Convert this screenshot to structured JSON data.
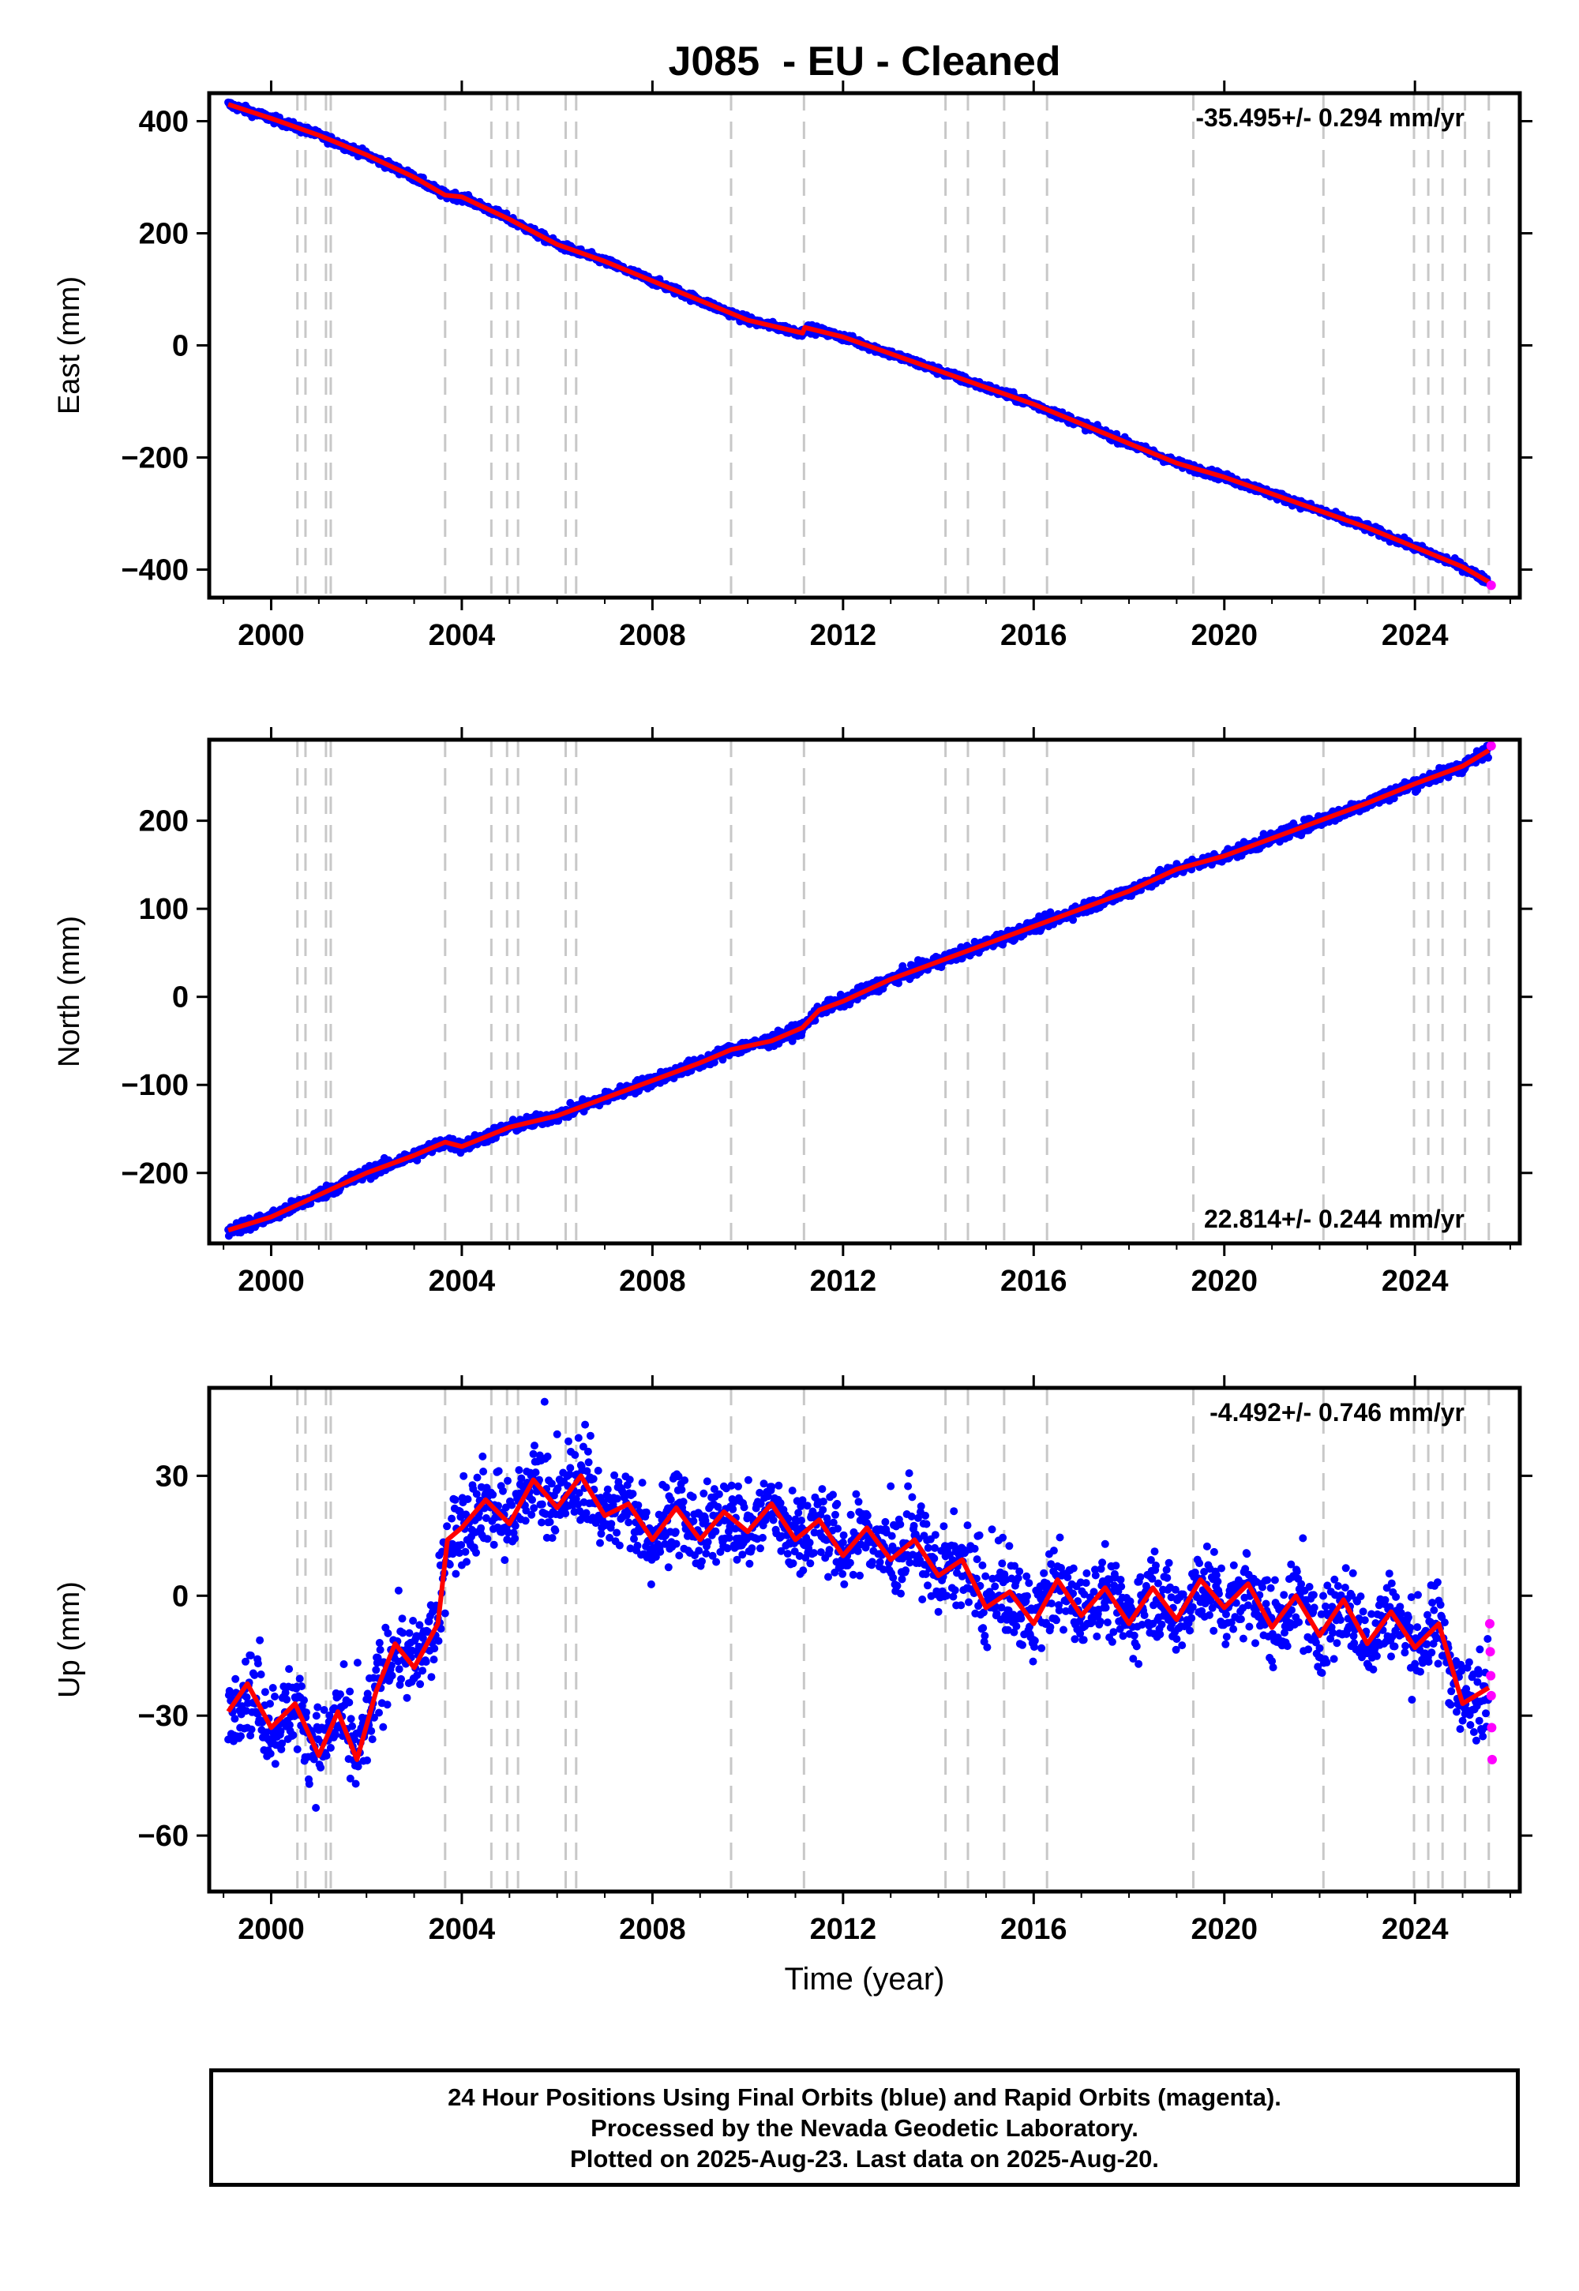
{
  "title": "J085  - EU - Cleaned",
  "colors": {
    "final": "#0000ff",
    "rapid": "#ff00ff",
    "model": "#ff0000",
    "breaks": "#c8c8c8",
    "axis": "#000000"
  },
  "xaxis": {
    "label": "Time (year)",
    "ticks": [
      2000,
      2004,
      2008,
      2012,
      2016,
      2020,
      2024
    ],
    "range": [
      1998.7,
      2026.2
    ]
  },
  "breaks": [
    2000.55,
    2000.72,
    2001.15,
    2001.25,
    2003.65,
    2004.62,
    2004.95,
    2005.18,
    2006.18,
    2006.4,
    2009.65,
    2011.18,
    2014.15,
    2014.62,
    2015.38,
    2016.28,
    2019.35,
    2022.08,
    2023.98,
    2024.28,
    2024.58,
    2025.05,
    2025.55
  ],
  "chart_data": [
    {
      "type": "scatter",
      "component": "East",
      "ylabel": "East (mm)",
      "rate_text": "-35.495+/- 0.294 mm/yr",
      "rate_position": "top-right",
      "ylim": [
        -450,
        450
      ],
      "yticks": [
        400,
        200,
        0,
        -200,
        -400
      ],
      "series": [
        {
          "name": "Final Orbits (blue)",
          "x": [
            1999.1,
            2000.0,
            2001.0,
            2002.0,
            2003.0,
            2003.65,
            2004.0,
            2005.0,
            2006.0,
            2007.0,
            2008.0,
            2009.0,
            2010.0,
            2011.15,
            2011.2,
            2012.0,
            2013.0,
            2014.0,
            2015.0,
            2016.0,
            2017.0,
            2018.0,
            2019.0,
            2019.6,
            2020.0,
            2021.0,
            2022.0,
            2023.0,
            2024.0,
            2025.0,
            2025.55
          ],
          "y": [
            430,
            405,
            375,
            340,
            300,
            268,
            265,
            225,
            180,
            150,
            115,
            80,
            45,
            22,
            32,
            15,
            -15,
            -45,
            -75,
            -105,
            -140,
            -175,
            -210,
            -225,
            -235,
            -265,
            -295,
            -325,
            -360,
            -395,
            -422
          ]
        },
        {
          "name": "Rapid Orbits (magenta)",
          "x": [
            2025.6
          ],
          "y": [
            -428
          ]
        }
      ]
    },
    {
      "type": "scatter",
      "component": "North",
      "ylabel": "North (mm)",
      "rate_text": "22.814+/- 0.244 mm/yr",
      "rate_position": "bottom-right",
      "ylim": [
        -280,
        292
      ],
      "yticks": [
        200,
        100,
        0,
        -100,
        -200
      ],
      "series": [
        {
          "name": "Final Orbits (blue)",
          "x": [
            1999.1,
            2000.0,
            2001.0,
            2002.0,
            2003.0,
            2003.65,
            2004.0,
            2005.0,
            2006.0,
            2007.0,
            2008.0,
            2009.0,
            2009.65,
            2010.5,
            2011.15,
            2011.5,
            2012.0,
            2013.0,
            2014.0,
            2015.0,
            2016.0,
            2017.0,
            2018.0,
            2019.0,
            2020.0,
            2021.0,
            2022.0,
            2023.0,
            2024.0,
            2025.0,
            2025.55
          ],
          "y": [
            -265,
            -250,
            -225,
            -200,
            -180,
            -165,
            -170,
            -148,
            -135,
            -115,
            -95,
            -75,
            -60,
            -50,
            -35,
            -15,
            -5,
            20,
            40,
            60,
            80,
            100,
            120,
            145,
            160,
            180,
            200,
            220,
            242,
            262,
            280
          ]
        },
        {
          "name": "Rapid Orbits (magenta)",
          "x": [
            2025.6
          ],
          "y": [
            285
          ]
        }
      ]
    },
    {
      "type": "scatter",
      "component": "Up",
      "ylabel": "Up (mm)",
      "rate_text": "-4.492+/- 0.746 mm/yr",
      "rate_position": "top-right",
      "ylim": [
        -74,
        52
      ],
      "yticks": [
        30,
        0,
        -30,
        -60
      ],
      "series": [
        {
          "name": "Final Orbits (blue)",
          "x": [
            1999.1,
            1999.5,
            2000.0,
            2000.5,
            2001.0,
            2001.4,
            2001.8,
            2002.2,
            2002.6,
            2003.0,
            2003.5,
            2003.7,
            2004.0,
            2004.5,
            2005.0,
            2005.5,
            2006.0,
            2006.5,
            2007.0,
            2007.5,
            2008.0,
            2008.5,
            2009.0,
            2009.5,
            2010.0,
            2010.5,
            2011.0,
            2011.5,
            2012.0,
            2012.5,
            2013.0,
            2013.5,
            2014.0,
            2014.5,
            2015.0,
            2015.5,
            2016.0,
            2016.5,
            2017.0,
            2017.5,
            2018.0,
            2018.5,
            2019.0,
            2019.5,
            2020.0,
            2020.5,
            2021.0,
            2021.5,
            2022.0,
            2022.5,
            2023.0,
            2023.5,
            2024.0,
            2024.5,
            2025.0,
            2025.55
          ],
          "y": [
            -29,
            -22,
            -33,
            -27,
            -40,
            -29,
            -41,
            -24,
            -12,
            -18,
            -7,
            14,
            17,
            24,
            18,
            29,
            22,
            30,
            20,
            23,
            14,
            22,
            14,
            21,
            16,
            23,
            14,
            19,
            10,
            17,
            9,
            14,
            5,
            9,
            -3,
            1,
            -7,
            4,
            -5,
            2,
            -7,
            2,
            -6,
            4,
            -3,
            3,
            -8,
            0,
            -10,
            -1,
            -12,
            -4,
            -13,
            -7,
            -27,
            -23
          ]
        },
        {
          "name": "Rapid Orbits (magenta)",
          "x": [
            2025.57,
            2025.58,
            2025.59,
            2025.6,
            2025.61,
            2025.62
          ],
          "y": [
            -7,
            -14,
            -20,
            -25,
            -33,
            -41
          ]
        }
      ]
    }
  ],
  "footer": {
    "line1": "24 Hour Positions Using Final Orbits (blue) and Rapid Orbits (magenta).",
    "line2": "Processed by the Nevada Geodetic Laboratory.",
    "line3": "Plotted on 2025-Aug-23. Last data on 2025-Aug-20."
  }
}
